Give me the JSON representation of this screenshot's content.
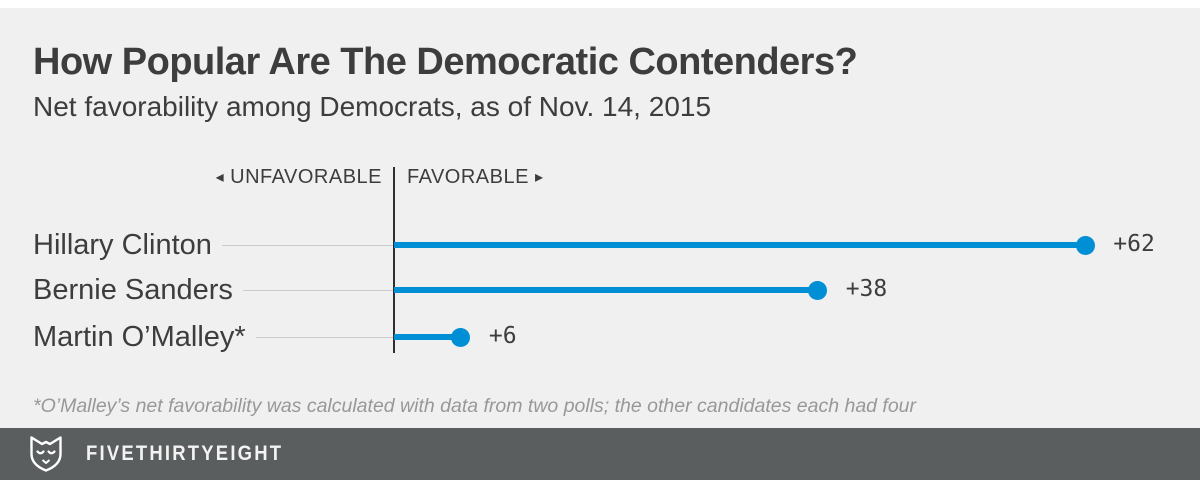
{
  "header": {
    "title": "How Popular Are The Democratic Contenders?",
    "subtitle": "Net favorability among Democrats, as of Nov. 14, 2015"
  },
  "chart_data": {
    "type": "bar",
    "orientation": "horizontal",
    "title": "How Popular Are The Democratic Contenders?",
    "subtitle": "Net favorability among Democrats, as of Nov. 14, 2015",
    "categories": [
      "Hillary Clinton",
      "Bernie Sanders",
      "Martin O’Malley*"
    ],
    "values": [
      62,
      38,
      6
    ],
    "value_labels": [
      "+62",
      "+38",
      "+6"
    ],
    "axis": {
      "unfavorable_label": "UNFAVORABLE",
      "favorable_label": "FAVORABLE",
      "left_arrow": "◂",
      "right_arrow": "▸",
      "zero_baseline": 0,
      "xlim": [
        0,
        70
      ],
      "grid": "off",
      "legend": "none"
    },
    "bar_color": "#008fd5"
  },
  "footnote": "*O’Malley’s net favorability was calculated with data from two polls; the other candidates each had four",
  "footer": {
    "brand": "FIVETHIRTYEIGHT",
    "logo": "fivethirtyeight-fox-icon"
  },
  "colors": {
    "background": "#f0f0f0",
    "accent_blue": "#008fd5",
    "text_dark": "#3d3d3d",
    "footnote_gray": "#989898",
    "footer_bg": "#5b5e5e",
    "leader_line": "#cbcbcb"
  }
}
